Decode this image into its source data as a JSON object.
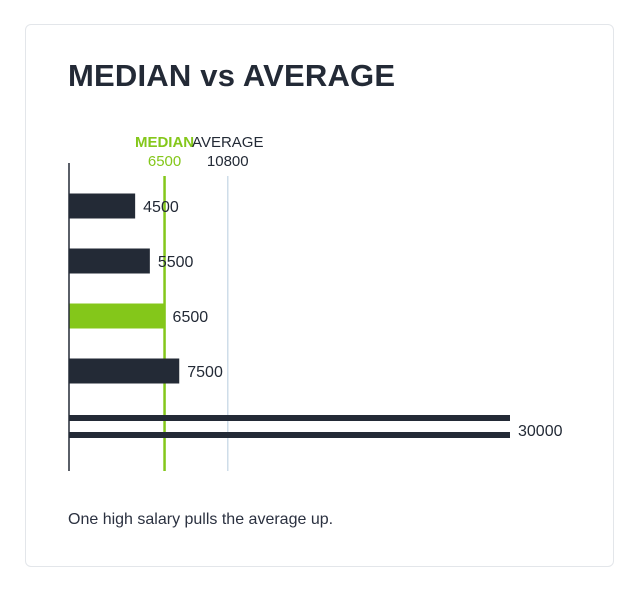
{
  "title": "MEDIAN vs AVERAGE",
  "caption": "One high salary pulls the average up.",
  "colors": {
    "bar": "#232a36",
    "highlight": "#84c71a",
    "average_line": "#cfdde9",
    "axis": "#232a36"
  },
  "chart_data": {
    "type": "bar",
    "orientation": "horizontal",
    "values": [
      4500,
      5500,
      6500,
      7500,
      30000
    ],
    "labels": [
      "4500",
      "5500",
      "6500",
      "7500",
      "30000"
    ],
    "highlight_index": 2,
    "reference_lines": [
      {
        "name": "MEDIAN",
        "value": 6500,
        "value_label": "6500",
        "style": "highlight"
      },
      {
        "name": "AVERAGE",
        "value": 10800,
        "value_label": "10800",
        "style": "muted"
      }
    ],
    "grid": false,
    "legend": "none"
  }
}
